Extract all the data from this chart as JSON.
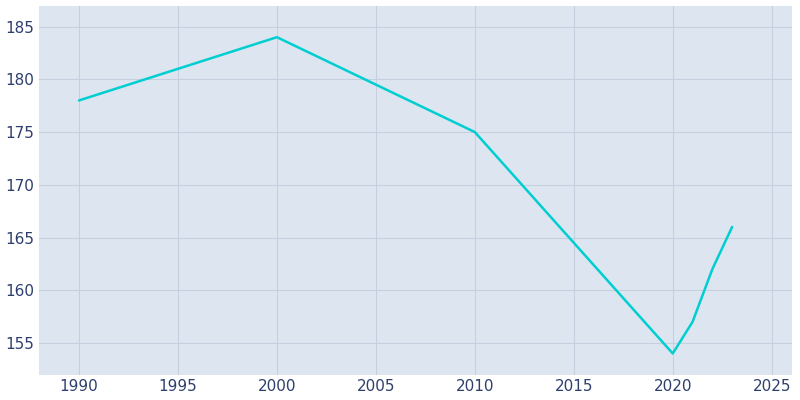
{
  "years": [
    1990,
    2000,
    2010,
    2020,
    2021,
    2022,
    2023
  ],
  "population": [
    178,
    184,
    175,
    154,
    157,
    162,
    166
  ],
  "line_color": "#00CED1",
  "bg_color": "#ffffff",
  "plot_bg_color": "#dde6f0",
  "xlim": [
    1988,
    2026
  ],
  "ylim": [
    152,
    187
  ],
  "xticks": [
    1990,
    1995,
    2000,
    2005,
    2010,
    2015,
    2020,
    2025
  ],
  "yticks": [
    155,
    160,
    165,
    170,
    175,
    180,
    185
  ],
  "tick_label_color": "#2e3f6e",
  "grid_color": "#c5cfe0",
  "linewidth": 1.8,
  "figsize": [
    8.0,
    4.0
  ],
  "dpi": 100,
  "tick_fontsize": 11
}
